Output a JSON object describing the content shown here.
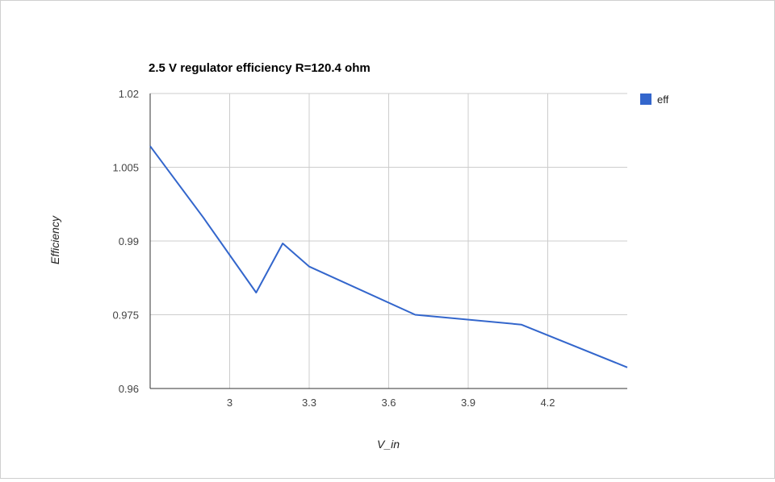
{
  "chart_data": {
    "type": "line",
    "title": "2.5 V regulator efficiency R=120.4 ohm",
    "xlabel": "V_in",
    "ylabel": "Efficiency",
    "xlim": [
      2.7,
      4.5
    ],
    "ylim": [
      0.96,
      1.02
    ],
    "x_ticks": [
      3,
      3.3,
      3.6,
      3.9,
      4.2
    ],
    "x_tick_labels": [
      "3",
      "3.3",
      "3.6",
      "3.9",
      "4.2"
    ],
    "y_ticks": [
      0.96,
      0.975,
      0.99,
      1.005,
      1.02
    ],
    "y_tick_labels": [
      "0.96",
      "0.975",
      "0.99",
      "1.005",
      "1.02"
    ],
    "grid": true,
    "legend": "right",
    "series": [
      {
        "name": "eff",
        "color": "#3366cc",
        "x": [
          2.7,
          2.9,
          3.1,
          3.2,
          3.3,
          3.7,
          4.1,
          4.5
        ],
        "y": [
          1.0093,
          0.9948,
          0.9795,
          0.9895,
          0.9848,
          0.975,
          0.973,
          0.9643
        ]
      }
    ]
  }
}
